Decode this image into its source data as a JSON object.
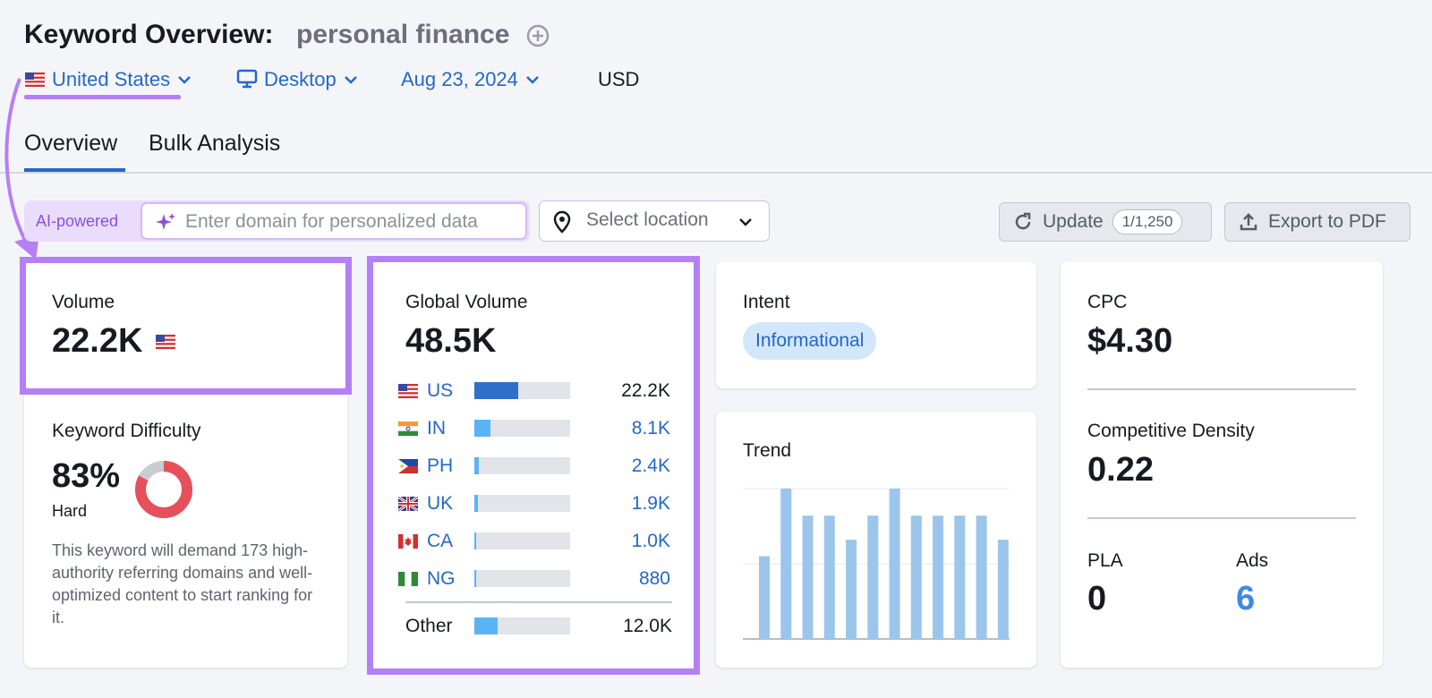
{
  "header": {
    "title": "Keyword Overview:",
    "keyword": "personal finance",
    "country": "United States",
    "device": "Desktop",
    "date": "Aug 23, 2024",
    "currency": "USD"
  },
  "tabs": [
    "Overview",
    "Bulk Analysis"
  ],
  "toolbar": {
    "ai_label": "AI-powered",
    "domain_placeholder": "Enter domain for personalized data",
    "location_placeholder": "Select location",
    "update": "Update",
    "update_count": "1/1,250",
    "export": "Export to PDF"
  },
  "volume": {
    "label": "Volume",
    "value": "22.2K"
  },
  "difficulty": {
    "label": "Keyword Difficulty",
    "value": 83,
    "value_label": "83%",
    "level": "Hard",
    "description": "This keyword will demand 173 high-authority referring domains and well-optimized content to start ranking for it."
  },
  "global_volume": {
    "label": "Global Volume",
    "value": 48500,
    "value_label": "48.5K",
    "countries": [
      {
        "code": "US",
        "value": 22200,
        "value_label": "22.2K"
      },
      {
        "code": "IN",
        "value": 8100,
        "value_label": "8.1K"
      },
      {
        "code": "PH",
        "value": 2400,
        "value_label": "2.4K"
      },
      {
        "code": "UK",
        "value": 1900,
        "value_label": "1.9K"
      },
      {
        "code": "CA",
        "value": 1000,
        "value_label": "1.0K"
      },
      {
        "code": "NG",
        "value": 880,
        "value_label": "880"
      }
    ],
    "other": {
      "label": "Other",
      "value": 12000,
      "value_label": "12.0K"
    }
  },
  "intent": {
    "label": "Intent",
    "value": "Informational"
  },
  "trend": {
    "label": "Trend",
    "values": [
      0.55,
      1,
      0.82,
      0.82,
      0.66,
      0.82,
      1,
      0.82,
      0.82,
      0.82,
      0.82,
      0.66
    ],
    "ylim": [
      0,
      1
    ],
    "yticks": [
      0,
      0.5,
      1
    ]
  },
  "cpc": {
    "label": "CPC",
    "value": "$4.30"
  },
  "competitive_density": {
    "label": "Competitive Density",
    "value": "0.22"
  },
  "pla": {
    "label": "PLA",
    "value": "0"
  },
  "ads": {
    "label": "Ads",
    "value": "6"
  }
}
